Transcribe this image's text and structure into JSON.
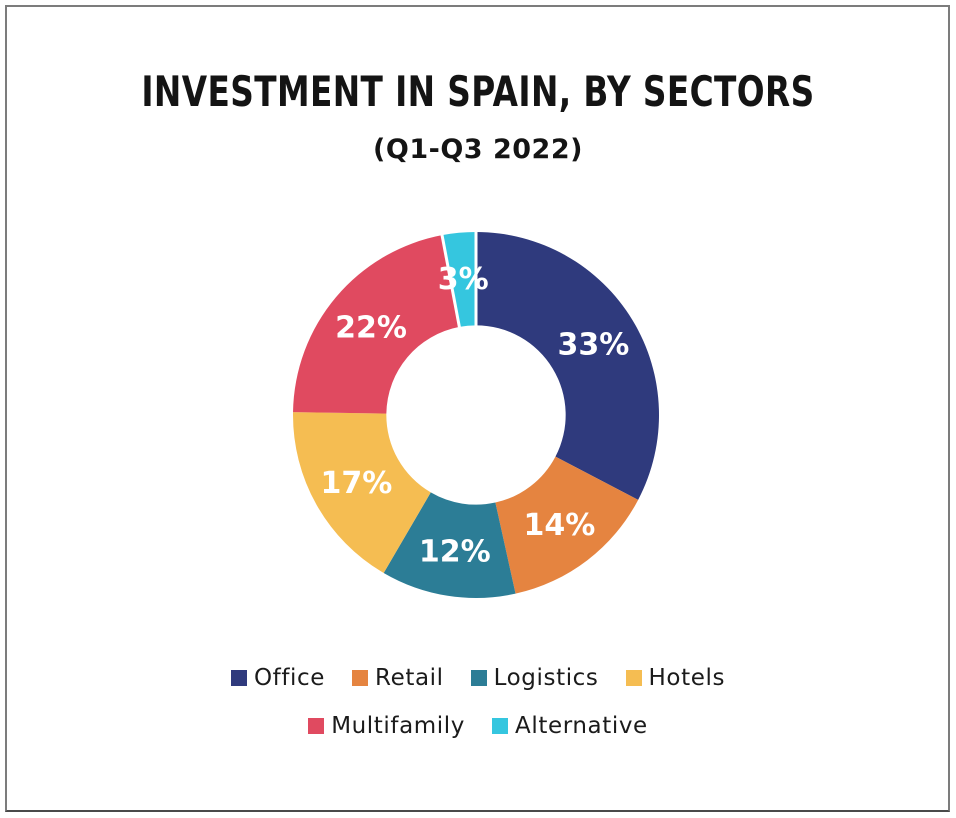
{
  "header": {
    "title": "INVESTMENT IN SPAIN, BY SECTORS",
    "subtitle": "(Q1-Q3 2022)"
  },
  "chart_data": {
    "type": "pie",
    "subtype": "donut",
    "title": "INVESTMENT IN SPAIN, BY SECTORS",
    "subtitle": "(Q1-Q3 2022)",
    "categories": [
      "Office",
      "Retail",
      "Logistics",
      "Hotels",
      "Multifamily",
      "Alternative"
    ],
    "values": [
      33,
      14,
      12,
      17,
      22,
      3
    ],
    "labels": [
      "33%",
      "14%",
      "12%",
      "17%",
      "22%",
      "3%"
    ],
    "unit": "%",
    "colors": [
      "#2F3A7D",
      "#E58440",
      "#2C7D96",
      "#F5BD52",
      "#E04A60",
      "#35C6DF"
    ],
    "label_color": "#FFFFFF",
    "start_angle_deg": 0,
    "direction": "clockwise",
    "inner_radius_ratio": 0.49,
    "label_radius_ratio": 0.75,
    "gap_slice_index": 5,
    "legend_position": "bottom",
    "legend_rows": [
      [
        0,
        1,
        2,
        3
      ],
      [
        4,
        5
      ]
    ],
    "background": "#FFFFFF",
    "frame_border_color": "#7C7C7C"
  }
}
